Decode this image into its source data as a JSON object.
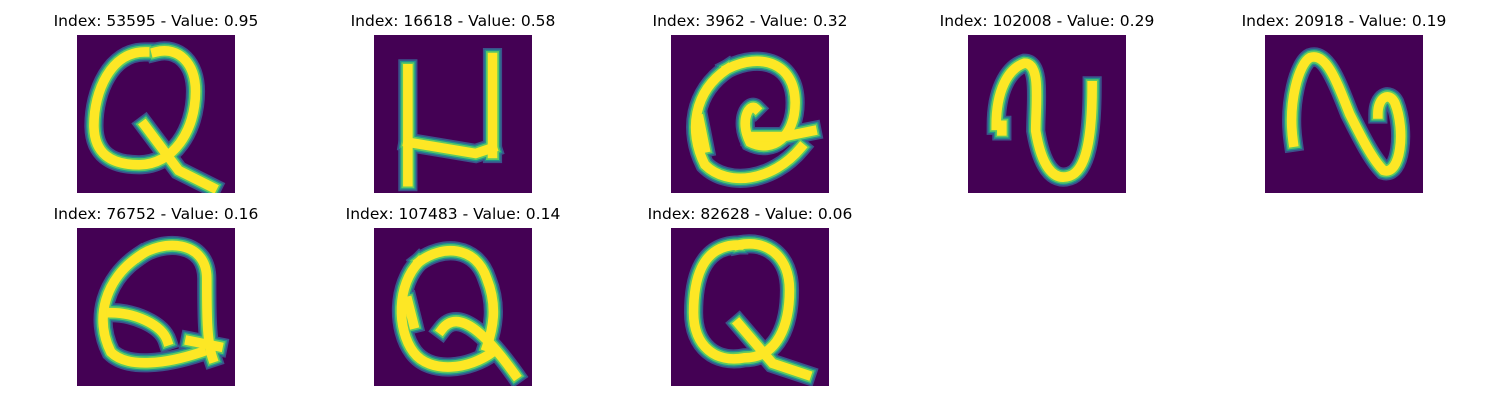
{
  "chart_data": {
    "type": "image_grid",
    "colormap": "viridis",
    "grid": {
      "rows": 2,
      "cols": 5
    },
    "colors": {
      "background": "#440154",
      "edge": "#21918c",
      "stroke": "#fde725",
      "mid_low": "#3b528b",
      "mid_high": "#5ec962"
    },
    "panels": [
      {
        "title": "Index: 53595 - Value: 0.95",
        "index": 53595,
        "value": 0.95,
        "glyph": "Q"
      },
      {
        "title": "Index: 16618 - Value: 0.58",
        "index": 16618,
        "value": 0.58,
        "glyph": "N"
      },
      {
        "title": "Index: 3962 - Value: 0.32",
        "index": 3962,
        "value": 0.32,
        "glyph": "Q"
      },
      {
        "title": "Index: 102008 - Value: 0.29",
        "index": 102008,
        "value": 0.29,
        "glyph": "N"
      },
      {
        "title": "Index: 20918 - Value: 0.19",
        "index": 20918,
        "value": 0.19,
        "glyph": "N"
      },
      {
        "title": "Index: 76752 - Value: 0.16",
        "index": 76752,
        "value": 0.16,
        "glyph": "Q"
      },
      {
        "title": "Index: 107483 - Value: 0.14",
        "index": 107483,
        "value": 0.14,
        "glyph": "Q"
      },
      {
        "title": "Index: 82628 - Value: 0.06",
        "index": 82628,
        "value": 0.06,
        "glyph": "Q"
      }
    ]
  }
}
